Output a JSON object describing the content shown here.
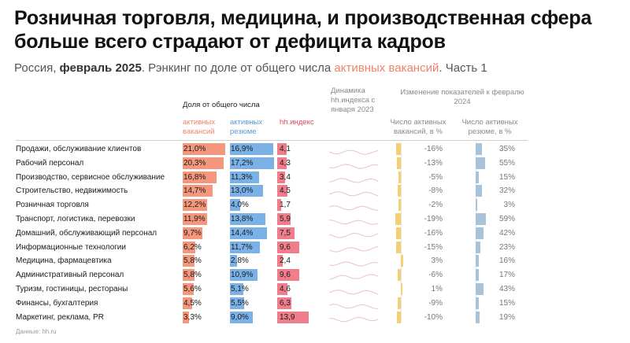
{
  "title": "Розничная торговля, медицина, и производственная сфера больше всего страдают от дефицита кадров",
  "subtitle": {
    "prefix": "Россия, ",
    "bold": "февраль 2025",
    "middle": ". Рэнкинг по доле от общего числа ",
    "highlight": "активных вакансий",
    "suffix": ". Часть 1"
  },
  "headers": {
    "share_group": "Доля от общего числа",
    "vacancies": "активных вакансий",
    "resumes": "активных резюме",
    "hh_index": "hh.индекс",
    "dynamics": "Динамика hh.индекса с января 2023",
    "change_group": "Изменение показателей к февралю 2024",
    "change_vacancies": "Число активных вакансий, в %",
    "change_resumes": "Число активных резюме, в %"
  },
  "source": "Данные: hh.ru",
  "colors": {
    "vacancies": "#f4977c",
    "resumes": "#7ab2e8",
    "hh_index": "#f07d8c",
    "change_vacancies": "#f5cf72",
    "change_resumes": "#a9c3da"
  },
  "chart_data": {
    "type": "table",
    "categories": [
      "Продажи, обслуживание клиентов",
      "Рабочий персонал",
      "Производство, сервисное обслуживание",
      "Строительство, недвижимость",
      "Розничная торговля",
      "Транспорт, логистика, перевозки",
      "Домашний, обслуживающий персонал",
      "Информационные технологии",
      "Медицина, фармацевтика",
      "Административный персонал",
      "Туризм, гостиницы, рестораны",
      "Финансы, бухгалтерия",
      "Маркетинг, реклама, PR"
    ],
    "series": [
      {
        "name": "активных вакансий",
        "unit": "%",
        "labels": [
          "21,0%",
          "20,3%",
          "16,8%",
          "14,7%",
          "12,2%",
          "11,9%",
          "9,7%",
          "6,2%",
          "5,8%",
          "5,8%",
          "5,6%",
          "4,5%",
          "3,3%"
        ],
        "values": [
          21.0,
          20.3,
          16.8,
          14.7,
          12.2,
          11.9,
          9.7,
          6.2,
          5.8,
          5.8,
          5.6,
          4.5,
          3.3
        ]
      },
      {
        "name": "активных резюме",
        "unit": "%",
        "labels": [
          "16,9%",
          "17,2%",
          "11,3%",
          "13,0%",
          "4,0%",
          "13,8%",
          "14,4%",
          "11,7%",
          "2,8%",
          "10,9%",
          "5,1%",
          "5,5%",
          "9,0%"
        ],
        "values": [
          16.9,
          17.2,
          11.3,
          13.0,
          4.0,
          13.8,
          14.4,
          11.7,
          2.8,
          10.9,
          5.1,
          5.5,
          9.0
        ]
      },
      {
        "name": "hh.индекс",
        "labels": [
          "4,1",
          "4,3",
          "3,4",
          "4,5",
          "1,7",
          "5,9",
          "7,5",
          "9,6",
          "2,4",
          "9,6",
          "4,6",
          "6,3",
          "13,9"
        ],
        "values": [
          4.1,
          4.3,
          3.4,
          4.5,
          1.7,
          5.9,
          7.5,
          9.6,
          2.4,
          9.6,
          4.6,
          6.3,
          13.9
        ]
      },
      {
        "name": "Число активных вакансий, в %",
        "labels": [
          "-16%",
          "-13%",
          "-5%",
          "-8%",
          "-2%",
          "-19%",
          "-16%",
          "-15%",
          "3%",
          "-6%",
          "1%",
          "-9%",
          "-10%"
        ],
        "values": [
          -16,
          -13,
          -5,
          -8,
          -2,
          -19,
          -16,
          -15,
          3,
          -6,
          1,
          -9,
          -10
        ]
      },
      {
        "name": "Число активных резюме, в %",
        "labels": [
          "35%",
          "55%",
          "15%",
          "32%",
          "3%",
          "59%",
          "42%",
          "23%",
          "16%",
          "17%",
          "43%",
          "15%",
          "19%"
        ],
        "values": [
          35,
          55,
          15,
          32,
          3,
          59,
          42,
          23,
          16,
          17,
          43,
          15,
          19
        ]
      }
    ]
  }
}
